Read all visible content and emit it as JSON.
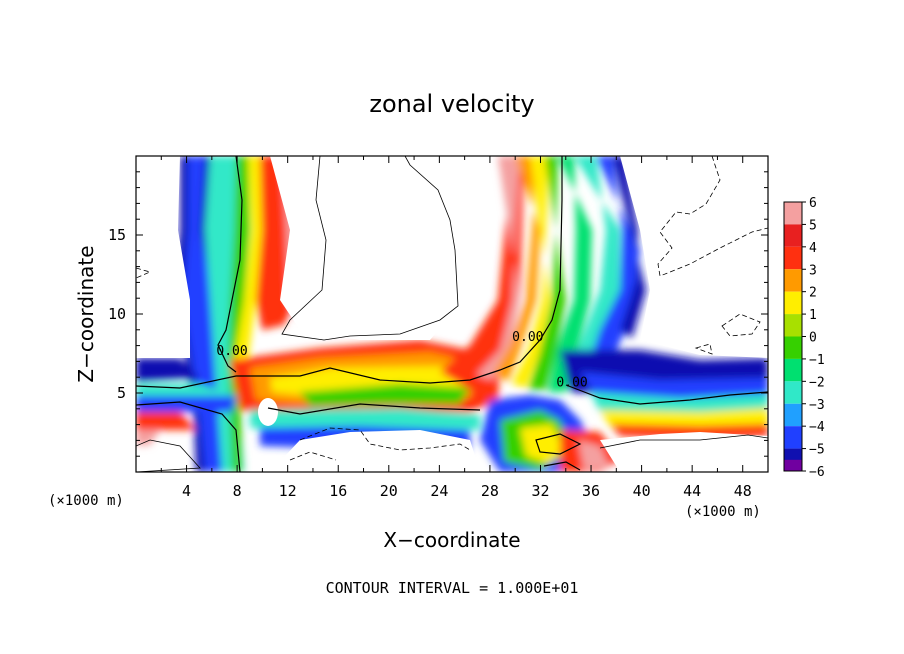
{
  "chart_data": {
    "type": "heatmap",
    "title": "zonal velocity",
    "xlabel": "X−coordinate",
    "ylabel": "Z−coordinate",
    "x_unit_left": "(×1000 m)",
    "x_unit_right": "(×1000 m)",
    "xlim": [
      0,
      50
    ],
    "ylim": [
      0,
      20
    ],
    "x_ticks": [
      4,
      8,
      12,
      16,
      20,
      24,
      28,
      32,
      36,
      40,
      44,
      48
    ],
    "x_tick_labels": [
      "4",
      "8",
      "12",
      "16",
      "20",
      "24",
      "28",
      "32",
      "36",
      "40",
      "44",
      "48"
    ],
    "y_ticks": [
      5,
      10,
      15
    ],
    "y_tick_labels": [
      "5",
      "10",
      "15"
    ],
    "colorbar": {
      "levels": [
        6,
        5,
        4,
        3,
        2,
        1,
        0,
        -1,
        -2,
        -3,
        -4,
        -5,
        -6
      ],
      "labels": [
        "6",
        "5",
        "4",
        "3",
        "2",
        "1",
        "0",
        "−1",
        "−2",
        "−3",
        "−4",
        "−5",
        "−6"
      ],
      "colors": [
        "#f4a0a0",
        "#e82020",
        "#ff3010",
        "#ff9a00",
        "#ffee00",
        "#a8e000",
        "#36d000",
        "#00e070",
        "#30e8c8",
        "#20a0ff",
        "#2040ff",
        "#1010b0",
        "#7000a0"
      ]
    },
    "contour_labels": [
      {
        "text": "0.00",
        "x": 7.6,
        "y": 7.4
      },
      {
        "text": "0.00",
        "x": 31.0,
        "y": 8.3
      },
      {
        "text": "0.00",
        "x": 34.5,
        "y": 5.4
      }
    ],
    "footer": "CONTOUR INTERVAL = 1.000E+01"
  }
}
